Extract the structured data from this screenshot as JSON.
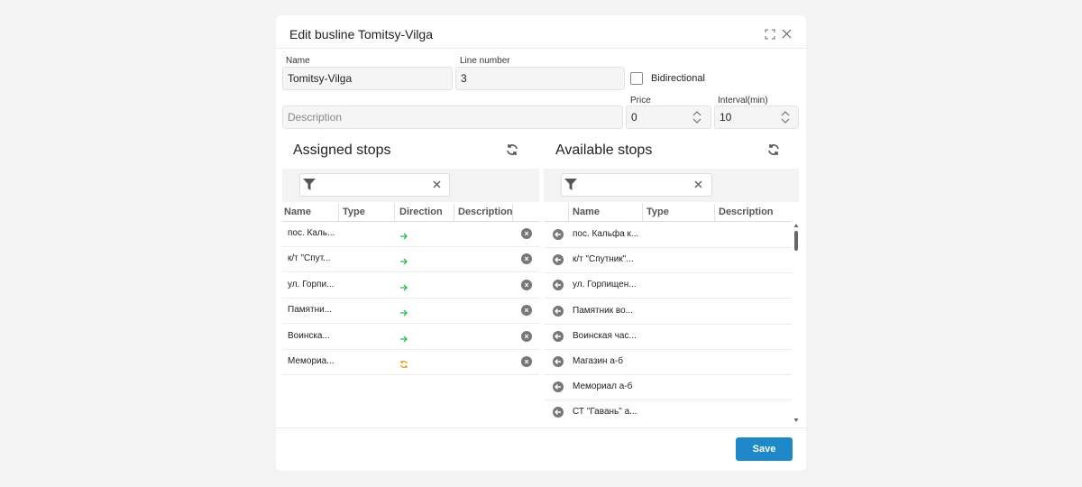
{
  "dialog": {
    "title": "Edit busline Tomitsy-Vilga",
    "save": "Save"
  },
  "form": {
    "name_label": "Name",
    "name_value": "Tomitsy-Vilga",
    "line_label": "Line number",
    "line_value": "3",
    "bidirectional_label": "Bidirectional",
    "description_placeholder": "Description",
    "price_label": "Price",
    "price_value": "0",
    "interval_label": "Interval(min)",
    "interval_value": "10"
  },
  "assigned": {
    "title": "Assigned stops",
    "columns": [
      "Name",
      "Type",
      "Direction",
      "Description"
    ],
    "rows": [
      "пос. Каль...",
      "к/т \"Спут...",
      "ул. Горпи...",
      "Памятни...",
      "Воинска...",
      "Мемориа..."
    ]
  },
  "available": {
    "title": "Available stops",
    "columns": [
      "Name",
      "Type",
      "Description"
    ],
    "rows": [
      "пос. Кальфа к...",
      "к/т \"Спутник\"...",
      "ул. Горпищен...",
      "Памятник во...",
      "Воинская час...",
      "Магазин а-б",
      "Мемориал а-б",
      "СТ \"Гавань\" а..."
    ]
  }
}
